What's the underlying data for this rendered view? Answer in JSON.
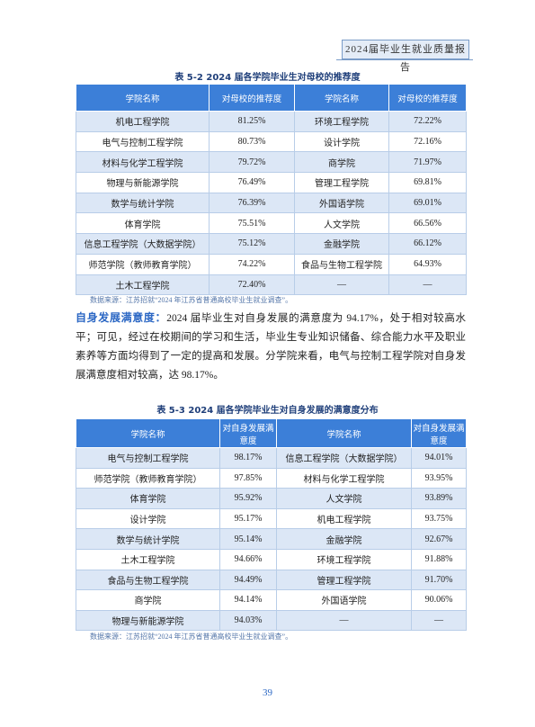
{
  "header": {
    "title": "2024届毕业生就业质量报告"
  },
  "table1": {
    "caption": "表 5-2   2024 届各学院毕业生对母校的推荐度",
    "headers": [
      "学院名称",
      "对母校的推荐度",
      "学院名称",
      "对母校的推荐度"
    ],
    "rows": [
      [
        "机电工程学院",
        "81.25%",
        "环境工程学院",
        "72.22%"
      ],
      [
        "电气与控制工程学院",
        "80.73%",
        "设计学院",
        "72.16%"
      ],
      [
        "材料与化学工程学院",
        "79.72%",
        "商学院",
        "71.97%"
      ],
      [
        "物理与新能源学院",
        "76.49%",
        "管理工程学院",
        "69.81%"
      ],
      [
        "数学与统计学院",
        "76.39%",
        "外国语学院",
        "69.01%"
      ],
      [
        "体育学院",
        "75.51%",
        "人文学院",
        "66.56%"
      ],
      [
        "信息工程学院（大数据学院）",
        "75.12%",
        "金融学院",
        "66.12%"
      ],
      [
        "师范学院（教师教育学院）",
        "74.22%",
        "食品与生物工程学院",
        "64.93%"
      ],
      [
        "土木工程学院",
        "72.40%",
        "—",
        "—"
      ]
    ],
    "source": "数据来源：江苏招就“2024 年江苏省普通高校毕业生就业调查”。"
  },
  "paragraph": {
    "lead": "自身发展满意度：",
    "text": "2024 届毕业生对自身发展的满意度为 94.17%，处于相对较高水平；可见，经过在校期间的学习和生活，毕业生专业知识储备、综合能力水平及职业素养等方面均得到了一定的提高和发展。分学院来看，电气与控制工程学院对自身发展满意度相对较高，达 98.17%。"
  },
  "table2": {
    "caption": "表 5-3   2024 届各学院毕业生对自身发展的满意度分布",
    "headers": [
      "学院名称",
      "对自身发展满意度",
      "学院名称",
      "对自身发展满意度"
    ],
    "rows": [
      [
        "电气与控制工程学院",
        "98.17%",
        "信息工程学院（大数据学院）",
        "94.01%"
      ],
      [
        "师范学院（教师教育学院）",
        "97.85%",
        "材料与化学工程学院",
        "93.95%"
      ],
      [
        "体育学院",
        "95.92%",
        "人文学院",
        "93.89%"
      ],
      [
        "设计学院",
        "95.17%",
        "机电工程学院",
        "93.75%"
      ],
      [
        "数学与统计学院",
        "95.14%",
        "金融学院",
        "92.67%"
      ],
      [
        "土木工程学院",
        "94.66%",
        "环境工程学院",
        "91.88%"
      ],
      [
        "食品与生物工程学院",
        "94.49%",
        "管理工程学院",
        "91.70%"
      ],
      [
        "商学院",
        "94.14%",
        "外国语学院",
        "90.06%"
      ],
      [
        "物理与新能源学院",
        "94.03%",
        "—",
        "—"
      ]
    ],
    "source": "数据来源：江苏招就“2024 年江苏省普通高校毕业生就业调查”。"
  },
  "footer": {
    "page": "39"
  }
}
